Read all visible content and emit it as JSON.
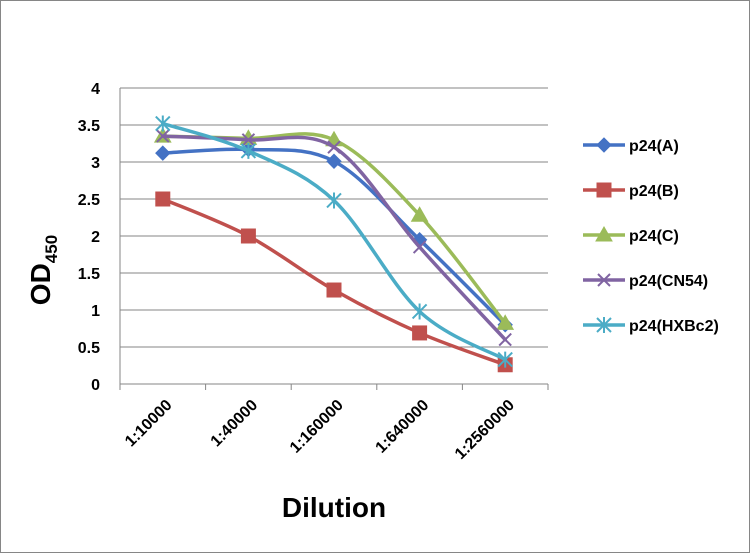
{
  "chart_data": {
    "type": "line",
    "xlabel": "Dilution",
    "ylabel_main": "OD",
    "ylabel_sub": "450",
    "categories": [
      "1:10000",
      "1:40000",
      "1:160000",
      "1:640000",
      "1:2560000"
    ],
    "ylim": [
      0,
      4
    ],
    "yticks": [
      "0",
      "0.5",
      "1",
      "1.5",
      "2",
      "2.5",
      "3",
      "3.5",
      "4"
    ],
    "grid": true,
    "legend_position": "right",
    "series": [
      {
        "name": "p24(A)",
        "values": [
          3.12,
          3.17,
          3.01,
          1.95,
          0.8
        ],
        "color": "#4472C4",
        "marker": "diamond"
      },
      {
        "name": "p24(B)",
        "values": [
          2.5,
          2.0,
          1.27,
          0.69,
          0.26
        ],
        "color": "#C0504D",
        "marker": "square"
      },
      {
        "name": "p24(C)",
        "values": [
          3.35,
          3.32,
          3.3,
          2.28,
          0.82
        ],
        "color": "#9BBB59",
        "marker": "triangle"
      },
      {
        "name": "p24(CN54)",
        "values": [
          3.35,
          3.3,
          3.2,
          1.85,
          0.6
        ],
        "color": "#8064A2",
        "marker": "x"
      },
      {
        "name": "p24(HXBc2)",
        "values": [
          3.52,
          3.15,
          2.48,
          0.98,
          0.33
        ],
        "color": "#4BACC6",
        "marker": "star"
      }
    ]
  }
}
